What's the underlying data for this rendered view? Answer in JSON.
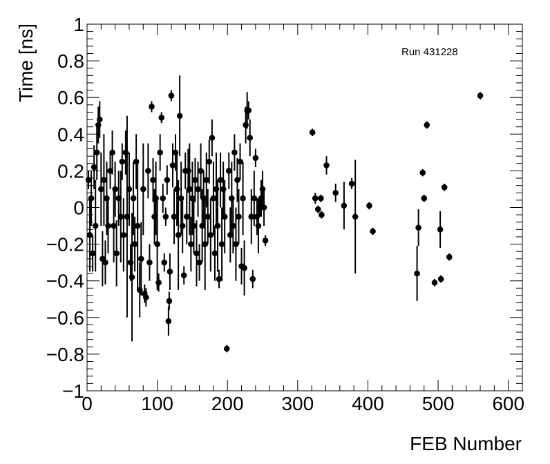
{
  "chart_data": {
    "type": "scatter",
    "title": "",
    "annotation": "Run 431228",
    "xlabel": "FEB Number",
    "ylabel": "Time [ns]",
    "xlim": [
      0,
      620
    ],
    "ylim": [
      -1,
      1
    ],
    "xticks": [
      0,
      100,
      200,
      300,
      400,
      500,
      600
    ],
    "yticks": [
      -1,
      -0.8,
      -0.6,
      -0.4,
      -0.2,
      0,
      0.2,
      0.4,
      0.6,
      0.8,
      1
    ],
    "grid": false,
    "legend": "none",
    "marker_color": "#000000",
    "points": [
      {
        "x": 2,
        "y": 0.15,
        "err": 0.05
      },
      {
        "x": 4,
        "y": -0.15,
        "err": 0.2
      },
      {
        "x": 6,
        "y": 0.05,
        "err": 0.15
      },
      {
        "x": 8,
        "y": -0.25,
        "err": 0.1
      },
      {
        "x": 10,
        "y": 0.22,
        "err": 0.12
      },
      {
        "x": 12,
        "y": -0.1,
        "err": 0.25
      },
      {
        "x": 14,
        "y": 0.3,
        "err": 0.15
      },
      {
        "x": 16,
        "y": 0.45,
        "err": 0.1
      },
      {
        "x": 18,
        "y": 0.48,
        "err": 0.1
      },
      {
        "x": 20,
        "y": 0.1,
        "err": 0.2
      },
      {
        "x": 22,
        "y": -0.28,
        "err": 0.15
      },
      {
        "x": 24,
        "y": 0.15,
        "err": 0.25
      },
      {
        "x": 26,
        "y": -0.3,
        "err": 0.12
      },
      {
        "x": 28,
        "y": 0.05,
        "err": 0.2
      },
      {
        "x": 30,
        "y": -0.1,
        "err": 0.15
      },
      {
        "x": 33,
        "y": 0.2,
        "err": 0.1
      },
      {
        "x": 36,
        "y": 0.3,
        "err": 0.12
      },
      {
        "x": 38,
        "y": -0.1,
        "err": 0.2
      },
      {
        "x": 40,
        "y": 0.1,
        "err": 0.15
      },
      {
        "x": 42,
        "y": -0.25,
        "err": 0.18
      },
      {
        "x": 45,
        "y": 0.05,
        "err": 0.15
      },
      {
        "x": 48,
        "y": -0.05,
        "err": 0.25
      },
      {
        "x": 50,
        "y": 0.25,
        "err": 0.1
      },
      {
        "x": 52,
        "y": -0.15,
        "err": 0.2
      },
      {
        "x": 55,
        "y": 0.3,
        "err": 0.12
      },
      {
        "x": 57,
        "y": -0.05,
        "err": 0.55
      },
      {
        "x": 60,
        "y": 0.1,
        "err": 0.2
      },
      {
        "x": 62,
        "y": -0.3,
        "err": 0.1
      },
      {
        "x": 64,
        "y": -0.38,
        "err": 0.35
      },
      {
        "x": 66,
        "y": 0.05,
        "err": 0.2
      },
      {
        "x": 68,
        "y": -0.2,
        "err": 0.15
      },
      {
        "x": 70,
        "y": 0.25,
        "err": 0.15
      },
      {
        "x": 72,
        "y": -0.1,
        "err": 0.35
      },
      {
        "x": 75,
        "y": -0.45,
        "err": 0.15
      },
      {
        "x": 77,
        "y": -0.28,
        "err": 0.2
      },
      {
        "x": 80,
        "y": 0.1,
        "err": 0.25
      },
      {
        "x": 82,
        "y": -0.47,
        "err": 0.05
      },
      {
        "x": 84,
        "y": -0.49,
        "err": 0.05
      },
      {
        "x": 87,
        "y": 0.2,
        "err": 0.15
      },
      {
        "x": 89,
        "y": -0.3,
        "err": 0.1
      },
      {
        "x": 92,
        "y": 0.55,
        "err": 0.03
      },
      {
        "x": 94,
        "y": 0.15,
        "err": 0.12
      },
      {
        "x": 96,
        "y": -0.05,
        "err": 0.15
      },
      {
        "x": 98,
        "y": 0.05,
        "err": 0.2
      },
      {
        "x": 100,
        "y": -0.2,
        "err": 0.25
      },
      {
        "x": 102,
        "y": -0.41,
        "err": 0.05
      },
      {
        "x": 104,
        "y": 0.3,
        "err": 0.1
      },
      {
        "x": 106,
        "y": 0.49,
        "err": 0.03
      },
      {
        "x": 108,
        "y": 0.05,
        "err": 0.08
      },
      {
        "x": 110,
        "y": -0.3,
        "err": 0.05
      },
      {
        "x": 112,
        "y": -0.05,
        "err": 0.05
      },
      {
        "x": 114,
        "y": 0.15,
        "err": 0.08
      },
      {
        "x": 116,
        "y": -0.62,
        "err": 0.08
      },
      {
        "x": 117,
        "y": -0.51,
        "err": 0.05
      },
      {
        "x": 118,
        "y": -0.35,
        "err": 0.1
      },
      {
        "x": 120,
        "y": 0.61,
        "err": 0.03
      },
      {
        "x": 122,
        "y": 0.23,
        "err": 0.12
      },
      {
        "x": 124,
        "y": -0.05,
        "err": 0.15
      },
      {
        "x": 126,
        "y": 0.3,
        "err": 0.1
      },
      {
        "x": 128,
        "y": 0.1,
        "err": 0.2
      },
      {
        "x": 130,
        "y": -0.15,
        "err": 0.3
      },
      {
        "x": 132,
        "y": 0.5,
        "err": 0.22
      },
      {
        "x": 134,
        "y": 0.05,
        "err": 0.2
      },
      {
        "x": 136,
        "y": -0.1,
        "err": 0.15
      },
      {
        "x": 138,
        "y": -0.37,
        "err": 0.05
      },
      {
        "x": 140,
        "y": 0.2,
        "err": 0.1
      },
      {
        "x": 142,
        "y": -0.05,
        "err": 0.15
      },
      {
        "x": 144,
        "y": 0.2,
        "err": 0.12
      },
      {
        "x": 146,
        "y": 0.1,
        "err": 0.25
      },
      {
        "x": 148,
        "y": -0.2,
        "err": 0.15
      },
      {
        "x": 150,
        "y": 0.05,
        "err": 0.2
      },
      {
        "x": 152,
        "y": -0.1,
        "err": 0.15
      },
      {
        "x": 154,
        "y": 0.15,
        "err": 0.12
      },
      {
        "x": 156,
        "y": -0.25,
        "err": 0.18
      },
      {
        "x": 158,
        "y": 0.1,
        "err": 0.15
      },
      {
        "x": 160,
        "y": -0.3,
        "err": 0.1
      },
      {
        "x": 162,
        "y": 0.2,
        "err": 0.15
      },
      {
        "x": 164,
        "y": -0.1,
        "err": 0.2
      },
      {
        "x": 166,
        "y": 0.05,
        "err": 0.15
      },
      {
        "x": 168,
        "y": -0.2,
        "err": 0.25
      },
      {
        "x": 170,
        "y": 0.15,
        "err": 0.15
      },
      {
        "x": 172,
        "y": -0.05,
        "err": 0.15
      },
      {
        "x": 174,
        "y": 0.25,
        "err": 0.12
      },
      {
        "x": 176,
        "y": -0.15,
        "err": 0.2
      },
      {
        "x": 178,
        "y": 0.38,
        "err": 0.1
      },
      {
        "x": 180,
        "y": 0.05,
        "err": 0.2
      },
      {
        "x": 182,
        "y": -0.25,
        "err": 0.15
      },
      {
        "x": 184,
        "y": 0.1,
        "err": 0.2
      },
      {
        "x": 186,
        "y": -0.1,
        "err": 0.25
      },
      {
        "x": 188,
        "y": -0.39,
        "err": 0.05
      },
      {
        "x": 190,
        "y": 0.15,
        "err": 0.15
      },
      {
        "x": 192,
        "y": -0.2,
        "err": 0.2
      },
      {
        "x": 194,
        "y": 0.1,
        "err": 0.15
      },
      {
        "x": 196,
        "y": -0.05,
        "err": 0.2
      },
      {
        "x": 199,
        "y": -0.77,
        "err": 0.02
      },
      {
        "x": 202,
        "y": 0.2,
        "err": 0.1
      },
      {
        "x": 204,
        "y": -0.15,
        "err": 0.15
      },
      {
        "x": 206,
        "y": 0.05,
        "err": 0.2
      },
      {
        "x": 208,
        "y": -0.1,
        "err": 0.15
      },
      {
        "x": 210,
        "y": 0.3,
        "err": 0.1
      },
      {
        "x": 212,
        "y": -0.2,
        "err": 0.2
      },
      {
        "x": 214,
        "y": 0.15,
        "err": 0.12
      },
      {
        "x": 216,
        "y": -0.05,
        "err": 0.15
      },
      {
        "x": 218,
        "y": 0.25,
        "err": 0.1
      },
      {
        "x": 220,
        "y": -0.32,
        "err": 0.1
      },
      {
        "x": 222,
        "y": 0.05,
        "err": 0.2
      },
      {
        "x": 224,
        "y": -0.33,
        "err": 0.15
      },
      {
        "x": 226,
        "y": 0.45,
        "err": 0.1
      },
      {
        "x": 228,
        "y": 0.53,
        "err": 0.1
      },
      {
        "x": 230,
        "y": 0.53,
        "err": 0.05
      },
      {
        "x": 232,
        "y": 0.38,
        "err": 0.1
      },
      {
        "x": 234,
        "y": -0.05,
        "err": 0.15
      },
      {
        "x": 236,
        "y": -0.39,
        "err": 0.05
      },
      {
        "x": 238,
        "y": 0.05,
        "err": 0.15
      },
      {
        "x": 240,
        "y": 0.27,
        "err": 0.05
      },
      {
        "x": 242,
        "y": -0.05,
        "err": 0.1
      },
      {
        "x": 244,
        "y": -0.1,
        "err": 0.15
      },
      {
        "x": 246,
        "y": 0.0,
        "err": 0.05
      },
      {
        "x": 248,
        "y": 0.05,
        "err": 0.1
      },
      {
        "x": 250,
        "y": 0.1,
        "err": 0.1
      },
      {
        "x": 252,
        "y": 0.0,
        "err": 0.1
      },
      {
        "x": 254,
        "y": -0.18,
        "err": 0.03
      },
      {
        "x": 321,
        "y": 0.41,
        "err": 0.02
      },
      {
        "x": 325,
        "y": 0.05,
        "err": 0.03
      },
      {
        "x": 329,
        "y": -0.01,
        "err": 0.02
      },
      {
        "x": 333,
        "y": 0.05,
        "err": 0.02
      },
      {
        "x": 334,
        "y": -0.04,
        "err": 0.02
      },
      {
        "x": 341,
        "y": 0.23,
        "err": 0.05
      },
      {
        "x": 354,
        "y": 0.08,
        "err": 0.05
      },
      {
        "x": 366,
        "y": 0.01,
        "err": 0.13
      },
      {
        "x": 377,
        "y": 0.13,
        "err": 0.03
      },
      {
        "x": 382,
        "y": -0.05,
        "err": 0.31
      },
      {
        "x": 402,
        "y": 0.01,
        "err": 0.02
      },
      {
        "x": 407,
        "y": -0.13,
        "err": 0.02
      },
      {
        "x": 470,
        "y": -0.36,
        "err": 0.15
      },
      {
        "x": 472,
        "y": -0.11,
        "err": 0.1
      },
      {
        "x": 478,
        "y": 0.19,
        "err": 0.02
      },
      {
        "x": 480,
        "y": 0.05,
        "err": 0.02
      },
      {
        "x": 484,
        "y": 0.45,
        "err": 0.02
      },
      {
        "x": 495,
        "y": -0.41,
        "err": 0.02
      },
      {
        "x": 503,
        "y": -0.12,
        "err": 0.1
      },
      {
        "x": 504,
        "y": -0.39,
        "err": 0.02
      },
      {
        "x": 509,
        "y": 0.11,
        "err": 0.02
      },
      {
        "x": 516,
        "y": -0.27,
        "err": 0.02
      },
      {
        "x": 560,
        "y": 0.61,
        "err": 0.02
      }
    ]
  }
}
